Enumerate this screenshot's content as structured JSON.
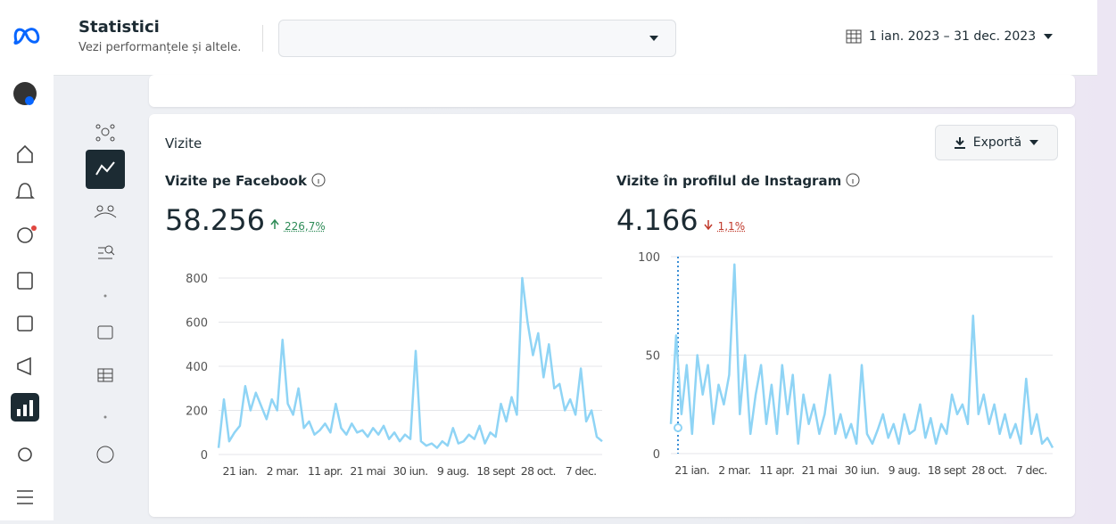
{
  "header": {
    "title": "Statistici",
    "subtitle": "Vezi performanțele și altele.",
    "date_range": "1 ian. 2023 – 31 dec. 2023"
  },
  "section": {
    "title": "Vizite",
    "export_label": "Exportă"
  },
  "metrics": [
    {
      "title": "Vizite pe Facebook",
      "total": "58.256",
      "change": "226,7%"
    },
    {
      "title": "Vizite în profilul de Instagram",
      "total": "4.166",
      "change": "1,1%"
    }
  ],
  "chart_data": [
    {
      "type": "line",
      "grid": true,
      "ylim": [
        0,
        800
      ],
      "yticks": [
        0,
        200,
        400,
        600,
        800
      ],
      "categories": [
        null,
        null,
        null,
        null,
        "21 ian.",
        null,
        null,
        null,
        null,
        null,
        null,
        null,
        "2 mar.",
        null,
        null,
        null,
        null,
        null,
        null,
        null,
        "11 apr.",
        null,
        null,
        null,
        null,
        null,
        null,
        null,
        "21 mai",
        null,
        null,
        null,
        null,
        null,
        null,
        null,
        "30 iun.",
        null,
        null,
        null,
        null,
        null,
        null,
        null,
        "9 aug.",
        null,
        null,
        null,
        null,
        null,
        null,
        null,
        "18 sept",
        null,
        null,
        null,
        null,
        null,
        null,
        null,
        "28 oct.",
        null,
        null,
        null,
        null,
        null,
        null,
        null,
        "7 dec.",
        null,
        null,
        null,
        null
      ],
      "series": [
        {
          "color": "#8fd4f5",
          "values": [
            30,
            250,
            60,
            100,
            130,
            310,
            200,
            280,
            220,
            160,
            250,
            200,
            520,
            230,
            180,
            300,
            120,
            150,
            90,
            110,
            140,
            100,
            230,
            120,
            90,
            140,
            100,
            110,
            80,
            120,
            90,
            130,
            70,
            100,
            60,
            90,
            70,
            470,
            60,
            40,
            50,
            30,
            60,
            40,
            120,
            50,
            60,
            90,
            70,
            130,
            50,
            100,
            80,
            230,
            150,
            260,
            180,
            800,
            600,
            450,
            550,
            350,
            500,
            300,
            320,
            200,
            250,
            180,
            390,
            150,
            200,
            80,
            60
          ]
        }
      ]
    },
    {
      "type": "line",
      "grid": true,
      "ylim": [
        0,
        100
      ],
      "yticks": [
        0,
        50,
        100
      ],
      "categories": [
        null,
        null,
        null,
        null,
        "21 ian.",
        null,
        null,
        null,
        null,
        null,
        null,
        null,
        "2 mar.",
        null,
        null,
        null,
        null,
        null,
        null,
        null,
        "11 apr.",
        null,
        null,
        null,
        null,
        null,
        null,
        null,
        "21 mai",
        null,
        null,
        null,
        null,
        null,
        null,
        null,
        "30 iun.",
        null,
        null,
        null,
        null,
        null,
        null,
        null,
        "9 aug.",
        null,
        null,
        null,
        null,
        null,
        null,
        null,
        "18 sept",
        null,
        null,
        null,
        null,
        null,
        null,
        null,
        "28 oct.",
        null,
        null,
        null,
        null,
        null,
        null,
        null,
        "7 dec.",
        null,
        null,
        null,
        null
      ],
      "series": [
        {
          "color": "#8fd4f5",
          "values": [
            15,
            60,
            20,
            45,
            10,
            50,
            30,
            45,
            15,
            35,
            25,
            40,
            96,
            20,
            50,
            10,
            30,
            45,
            15,
            35,
            10,
            45,
            20,
            40,
            5,
            30,
            15,
            25,
            10,
            20,
            40,
            10,
            20,
            8,
            15,
            5,
            45,
            10,
            5,
            12,
            20,
            8,
            15,
            5,
            20,
            10,
            12,
            25,
            8,
            18,
            5,
            15,
            10,
            30,
            20,
            25,
            15,
            70,
            20,
            30,
            15,
            25,
            10,
            20,
            8,
            15,
            5,
            38,
            10,
            20,
            5,
            8,
            3
          ]
        }
      ]
    }
  ]
}
